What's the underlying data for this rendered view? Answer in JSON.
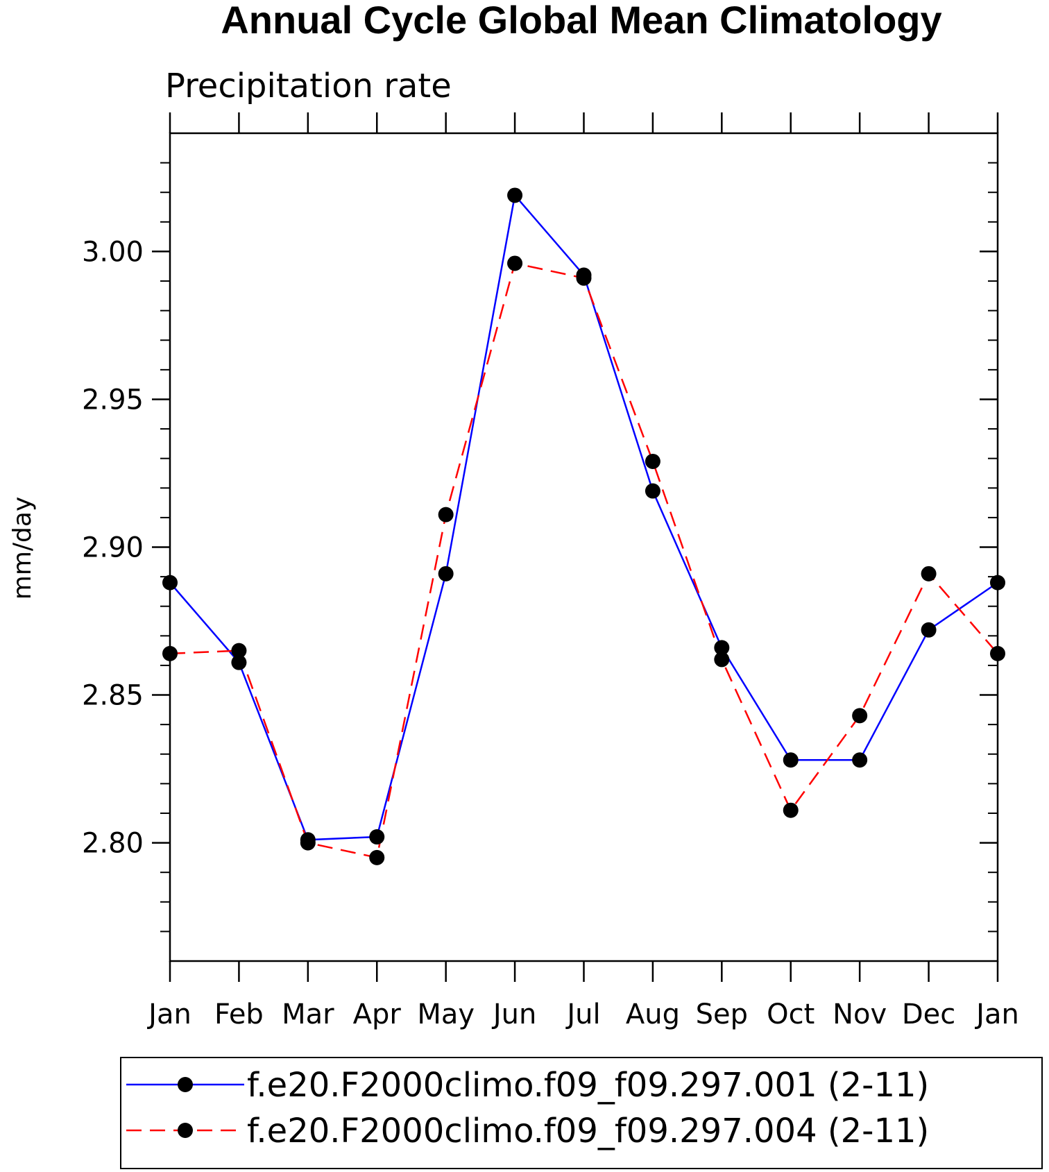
{
  "chart_data": {
    "type": "line",
    "title": "Annual Cycle Global Mean Climatology",
    "subtitle": "Precipitation rate",
    "xlabel": "",
    "ylabel": "mm/day",
    "categories": [
      "Jan",
      "Feb",
      "Mar",
      "Apr",
      "May",
      "Jun",
      "Jul",
      "Aug",
      "Sep",
      "Oct",
      "Nov",
      "Dec",
      "Jan"
    ],
    "ylim": [
      2.76,
      3.04
    ],
    "yticks": [
      "2.80",
      "2.85",
      "2.90",
      "2.95",
      "3.00"
    ],
    "grid": false,
    "legend_position": "bottom",
    "series": [
      {
        "name": "f.e20.F2000climo.f09_f09.297.001 (2-11)",
        "color": "#0000ff",
        "line_style": "solid",
        "marker": "filled-circle",
        "values": [
          2.888,
          2.861,
          2.801,
          2.802,
          2.891,
          3.019,
          2.992,
          2.919,
          2.866,
          2.828,
          2.828,
          2.872,
          2.888
        ]
      },
      {
        "name": "f.e20.F2000climo.f09_f09.297.004 (2-11)",
        "color": "#ff0000",
        "line_style": "dashed",
        "marker": "filled-circle",
        "values": [
          2.864,
          2.865,
          2.8,
          2.795,
          2.911,
          2.996,
          2.991,
          2.929,
          2.862,
          2.811,
          2.843,
          2.891,
          2.864
        ]
      }
    ]
  }
}
